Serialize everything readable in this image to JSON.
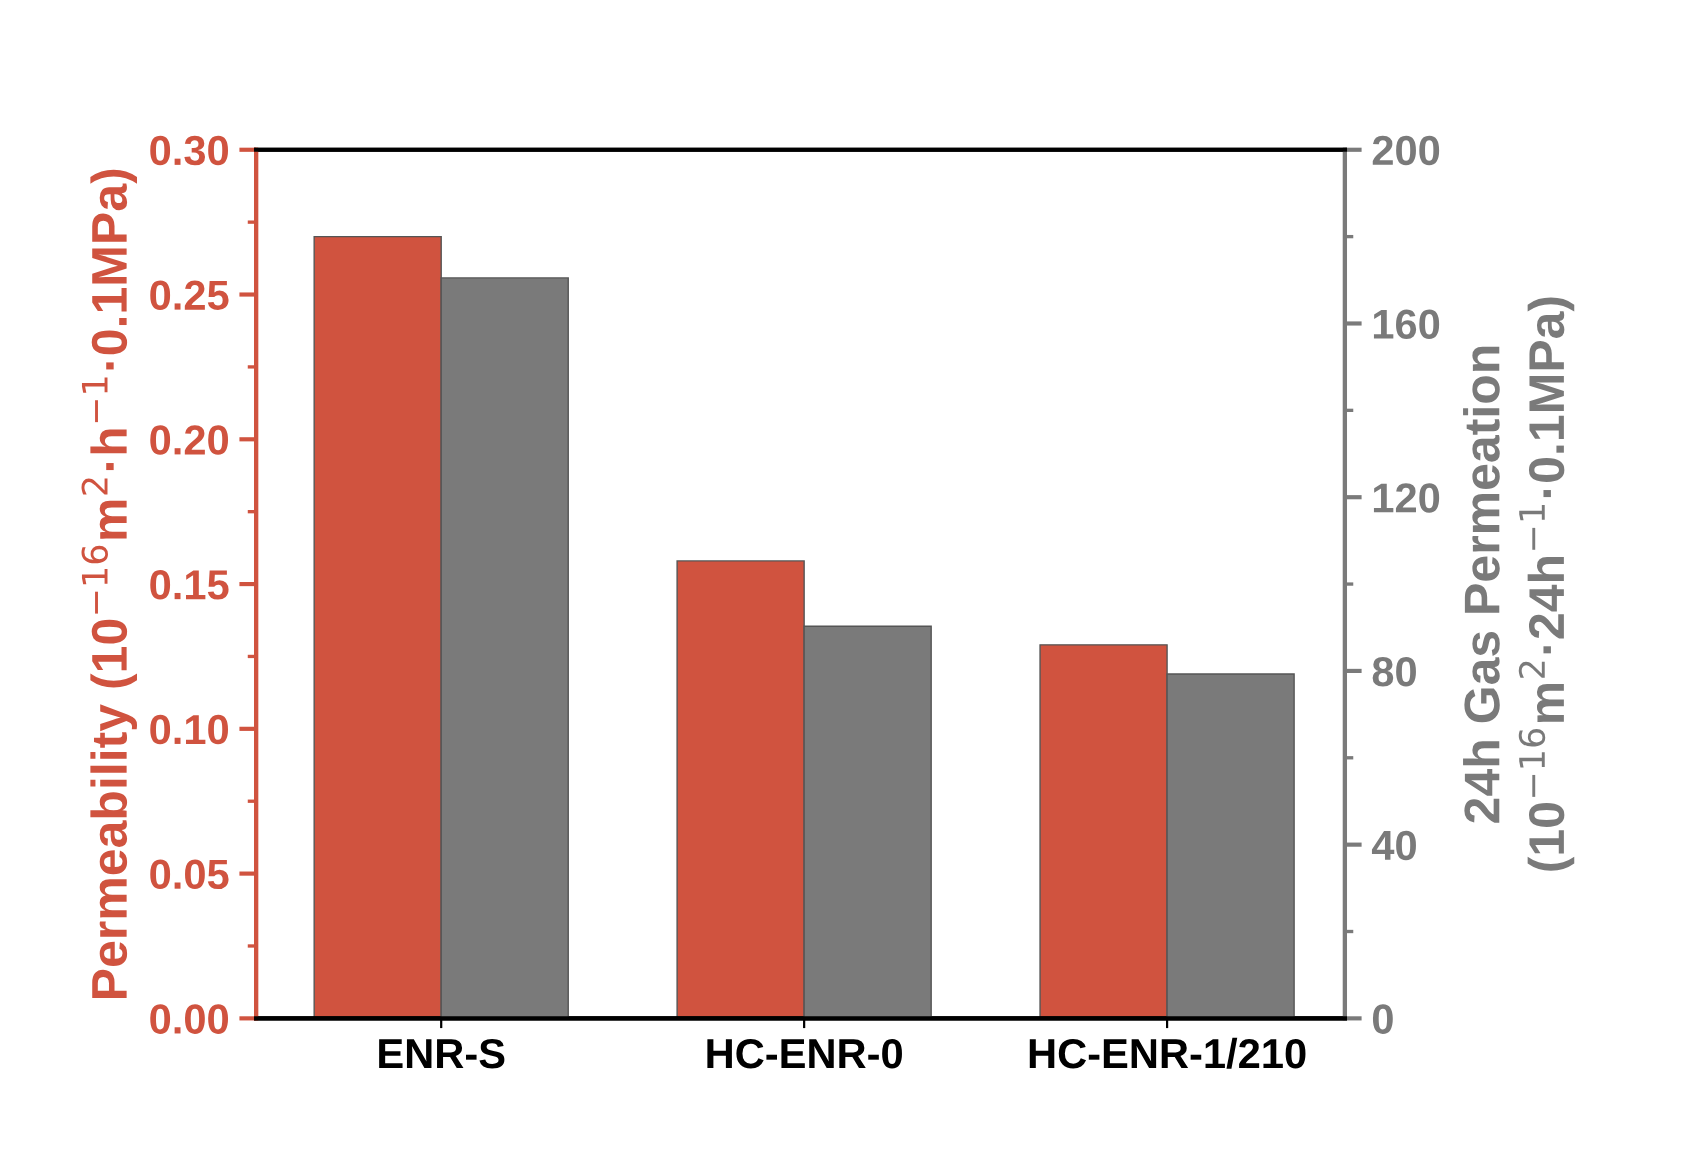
{
  "chart_data": {
    "type": "bar",
    "categories": [
      "ENR-S",
      "HC-ENR-0",
      "HC-ENR-1/210"
    ],
    "ylabel": "Permeability (10$^{−16}$m$^{2}$·h$^{−1}$·0.1MPa)",
    "y2label": "24h Gas Permeation\n(10$^{−16}$m$^{2}$·24h$^{−1}$·0.1MPa)",
    "series": [
      {
        "color": "#d0533f",
        "values": [
          0.27,
          0.158,
          0.129
        ]
      },
      {
        "color": "#7a7a7a",
        "axis": "y2",
        "values": [
          170.5,
          90.3,
          79.3
        ]
      }
    ],
    "ylim": [
      0,
      0.3
    ],
    "yticks": [
      {
        "value": 0,
        "label": "0.00"
      },
      {
        "value": 0.05,
        "label": "0.05"
      },
      {
        "value": 0.1,
        "label": "0.10"
      },
      {
        "value": 0.15,
        "label": "0.15"
      },
      {
        "value": 0.2,
        "label": "0.20"
      },
      {
        "value": 0.25,
        "label": "0.25"
      },
      {
        "value": 0.3,
        "label": "0.30"
      }
    ],
    "y2lim": [
      0,
      200
    ],
    "y2ticks": [
      0,
      40,
      80,
      120,
      160,
      200
    ],
    "grid": false,
    "legend": false
  }
}
